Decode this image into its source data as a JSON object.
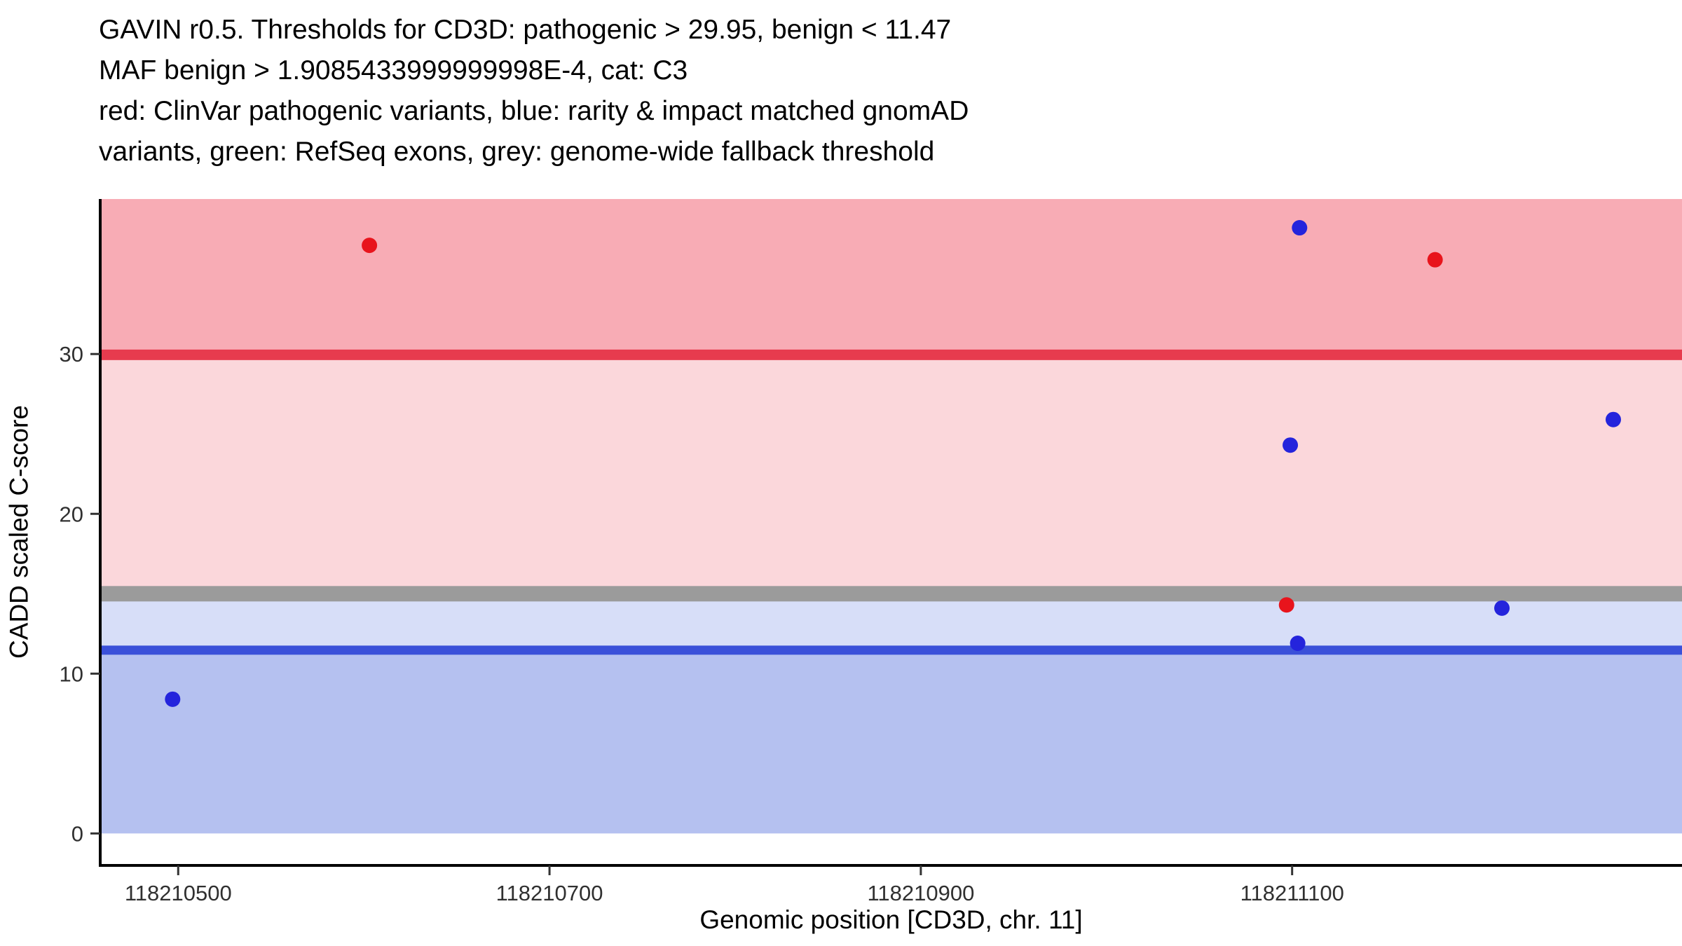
{
  "chart_data": {
    "type": "scatter",
    "title_lines": [
      "GAVIN r0.5. Thresholds for CD3D: pathogenic > 29.95, benign < 11.47",
      "MAF benign > 1.9085433999999998E-4, cat: C3",
      "red: ClinVar pathogenic variants, blue: rarity & impact matched gnomAD",
      "variants, green: RefSeq exons, grey: genome-wide fallback threshold"
    ],
    "xlabel": "Genomic position [CD3D, chr. 11]",
    "ylabel": "CADD scaled C-score",
    "xlim": [
      118210458,
      118211310
    ],
    "ylim": [
      -2,
      39.7
    ],
    "x_ticks": [
      118210500,
      118210700,
      118210900,
      118211100
    ],
    "y_ticks": [
      0,
      10,
      20,
      30
    ],
    "grid": false,
    "legend": "none",
    "thresholds": {
      "pathogenic_gt": 29.95,
      "benign_lt": 11.47,
      "maf_benign_gt": "1.9085433999999998E-4",
      "category": "C3",
      "genome_wide_fallback": 15
    },
    "bands": [
      {
        "id": "pathogenic-zone",
        "from": 29.95,
        "to": 39.7,
        "color": "#F8ACB5"
      },
      {
        "id": "uncertain-upper-zone",
        "from": 15,
        "to": 29.95,
        "color": "#FBD7DB"
      },
      {
        "id": "uncertain-lower-zone",
        "from": 11.47,
        "to": 15,
        "color": "#D7DEF8"
      },
      {
        "id": "benign-zone",
        "from": 0,
        "to": 11.47,
        "color": "#B5C1F0"
      }
    ],
    "lines": [
      {
        "id": "pathogenic-threshold-line",
        "y": 29.95,
        "color": "#E73B4E",
        "width": 15
      },
      {
        "id": "genome-wide-fallback-line",
        "y": 15,
        "color": "#9B9B9B",
        "width": 22
      },
      {
        "id": "benign-threshold-line",
        "y": 11.47,
        "color": "#3A50D9",
        "width": 13
      }
    ],
    "series": [
      {
        "id": "clinvar-pathogenic",
        "label": "ClinVar pathogenic variants",
        "color": "#E8141C",
        "points": [
          [
            118210603,
            36.8
          ],
          [
            118211177,
            35.9
          ],
          [
            118211097,
            14.3
          ]
        ]
      },
      {
        "id": "gnomad-matched",
        "label": "rarity & impact matched gnomAD variants",
        "color": "#2424DC",
        "points": [
          [
            118211104,
            37.9
          ],
          [
            118211273,
            25.9
          ],
          [
            118211099,
            24.3
          ],
          [
            118211213,
            14.1
          ],
          [
            118211103,
            11.9
          ],
          [
            118210497,
            8.4
          ]
        ]
      }
    ],
    "axis_color": "#000000",
    "tick_label_color": "#303030"
  }
}
